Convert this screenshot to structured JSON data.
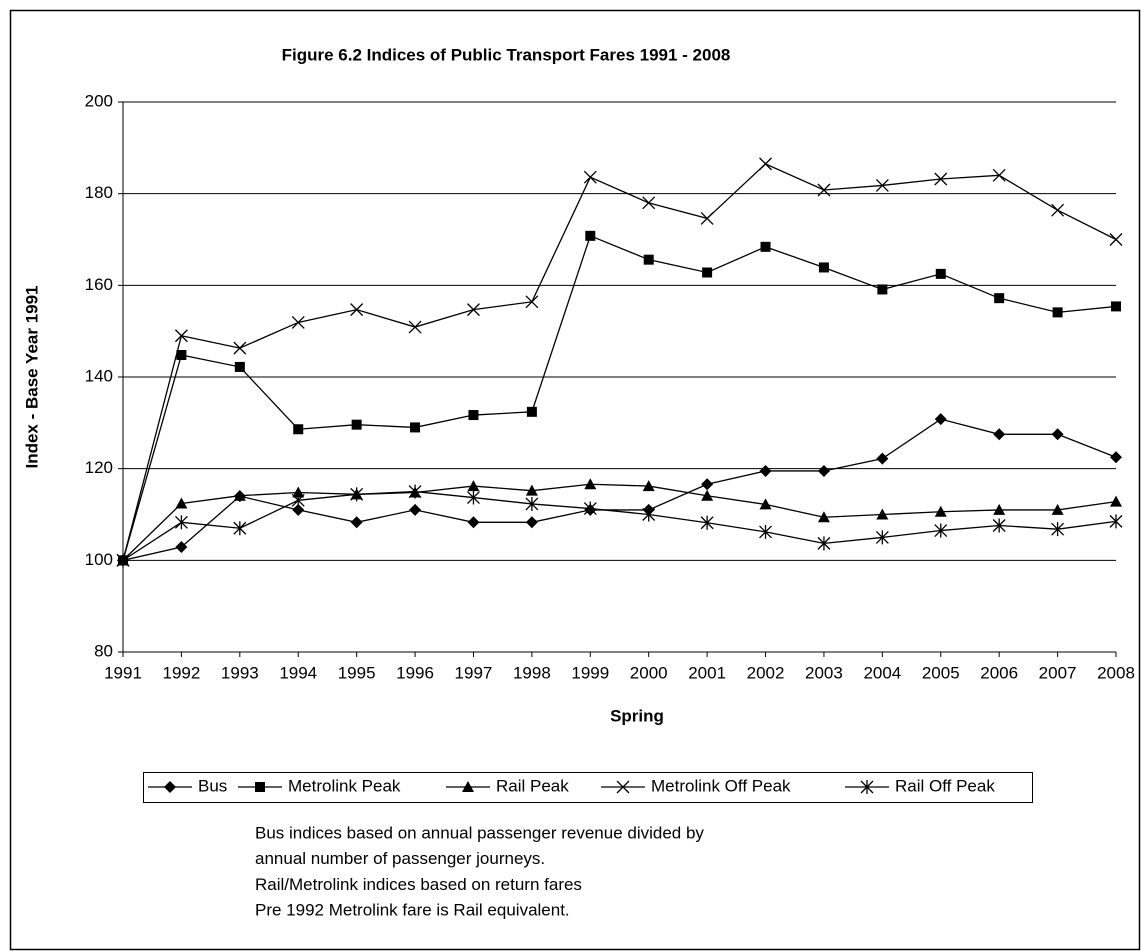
{
  "chart_data": {
    "type": "line",
    "title": "Figure 6.2 Indices of Public Transport Fares 1991 - 2008",
    "x_label": "Spring",
    "y_label": "Index - Base Year 1991",
    "categories": [
      "1991",
      "1992",
      "1993",
      "1994",
      "1995",
      "1996",
      "1997",
      "1998",
      "1999",
      "2000",
      "2001",
      "2002",
      "2003",
      "2004",
      "2005",
      "2006",
      "2007",
      "2008"
    ],
    "series": [
      {
        "name": "Bus",
        "color": "#000000",
        "marker": "diamond",
        "values": [
          100,
          102.9,
          114,
          111,
          108.3,
          111,
          108.3,
          108.3,
          111,
          111,
          116.6,
          119.5,
          119.5,
          122.2,
          130.8,
          127.5,
          127.5,
          122.5
        ]
      },
      {
        "name": "Metrolink Peak",
        "color": "#000000",
        "marker": "square",
        "values": [
          100,
          144.8,
          142.2,
          128.6,
          129.6,
          129,
          131.7,
          132.4,
          170.8,
          165.6,
          162.8,
          168.4,
          163.9,
          159.1,
          162.5,
          157.2,
          154.1,
          155.4
        ]
      },
      {
        "name": "Rail Peak",
        "color": "#000000",
        "marker": "triangle",
        "values": [
          100,
          112.4,
          114.1,
          114.8,
          114.4,
          114.8,
          116.2,
          115.2,
          116.6,
          116.2,
          114.1,
          112.2,
          109.4,
          110,
          110.6,
          111,
          111,
          112.8
        ]
      },
      {
        "name": "Metrolink Off Peak",
        "color": "#000000",
        "marker": "x",
        "values": [
          100,
          149,
          146.3,
          151.9,
          154.7,
          150.9,
          154.7,
          156.4,
          183.6,
          178,
          174.6,
          186.5,
          180.8,
          181.8,
          183.2,
          184,
          176.4,
          170
        ]
      },
      {
        "name": "Rail Off Peak",
        "color": "#000000",
        "marker": "asterisk",
        "values": [
          100,
          108.3,
          107,
          113.1,
          114.4,
          115,
          113.7,
          112.3,
          111.3,
          110,
          108.2,
          106.2,
          103.7,
          105,
          106.5,
          107.6,
          106.8,
          108.5
        ]
      }
    ],
    "ylim": [
      80,
      200
    ],
    "yticks": [
      80,
      100,
      120,
      140,
      160,
      180,
      200
    ],
    "grid": true,
    "legend": "bottom",
    "notes": [
      "Bus indices based on annual passenger revenue divided by",
      "annual number of passenger journeys.",
      "Rail/Metrolink indices based on return fares",
      "Pre 1992 Metrolink fare is Rail equivalent."
    ]
  }
}
